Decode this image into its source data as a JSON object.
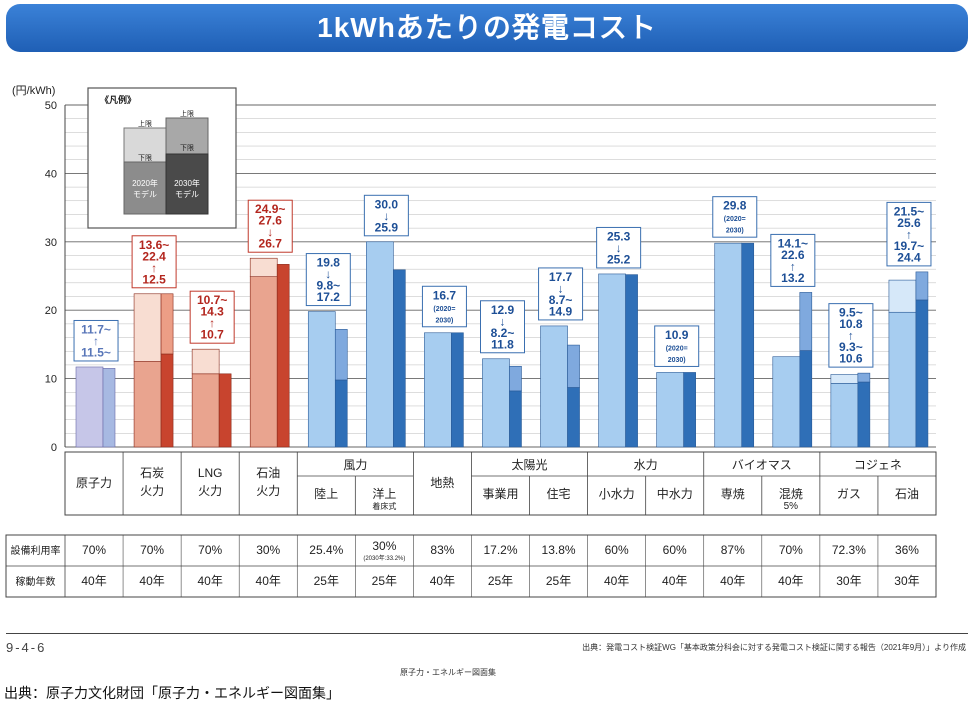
{
  "title": "1kWhあたりの発電コスト",
  "footer": {
    "figure_no": "9-4-6",
    "source_note": "出典：発電コスト検証WG「基本政策分科会に対する発電コスト検証に関する報告（2021年9月）」より作成",
    "book": "原子力・エネルギー図面集",
    "credit": "出典：原子力文化財団「原子力・エネルギー図面集」"
  },
  "legend": {
    "title": "《凡例》",
    "upper": "上限",
    "lower": "下限",
    "model2020": [
      "2020年",
      "モデル"
    ],
    "model2030": [
      "2030年",
      "モデル"
    ]
  },
  "chart_data": {
    "type": "bar",
    "title": "1kWhあたりの発電コスト",
    "ylabel": "(円/kWh)",
    "ylim": [
      0,
      50
    ],
    "yticks": [
      0,
      10,
      20,
      30,
      40,
      50
    ],
    "grid": true,
    "legend_position": "top-left",
    "group_labels": [
      "",
      "",
      "",
      "",
      "風力",
      "",
      "太陽光",
      "水力",
      "バイオマス",
      "コジェネ"
    ],
    "categories": [
      {
        "name": "原子力",
        "sub": "",
        "lower2020": 11.7,
        "upper2020": null,
        "lower2030": 11.5,
        "upper2030": null,
        "label": [
          "11.7~",
          "↑",
          "11.5~"
        ],
        "color": "purple",
        "group": ""
      },
      {
        "name": "石炭\n火力",
        "sub": "",
        "lower2020": 12.5,
        "upper2020": 22.4,
        "lower2030": 13.6,
        "upper2030": 22.4,
        "label": [
          "13.6~",
          "22.4",
          "↑",
          "12.5"
        ],
        "color": "red",
        "group": ""
      },
      {
        "name": "LNG\n火力",
        "sub": "",
        "lower2020": 10.7,
        "upper2020": 14.3,
        "lower2030": 10.7,
        "upper2030": null,
        "label": [
          "10.7~",
          "14.3",
          "↑",
          "10.7"
        ],
        "color": "red",
        "group": ""
      },
      {
        "name": "石油\n火力",
        "sub": "",
        "lower2020": 24.9,
        "upper2020": 27.6,
        "lower2030": 26.7,
        "upper2030": null,
        "label": [
          "24.9~",
          "27.6",
          "↓",
          "26.7"
        ],
        "color": "red",
        "group": ""
      },
      {
        "name": "陸上",
        "sub": "",
        "lower2020": 19.8,
        "upper2020": null,
        "lower2030": 9.8,
        "upper2030": 17.2,
        "label": [
          "19.8",
          "↓",
          "9.8~",
          "17.2"
        ],
        "color": "blue",
        "group": "風力"
      },
      {
        "name": "洋上",
        "sub": "着床式",
        "lower2020": 30.0,
        "upper2020": null,
        "lower2030": 25.9,
        "upper2030": null,
        "label": [
          "30.0",
          "↓",
          "25.9"
        ],
        "color": "blue",
        "group": "風力"
      },
      {
        "name": "地熱",
        "sub": "",
        "lower2020": 16.7,
        "upper2020": null,
        "lower2030": 16.7,
        "upper2030": null,
        "label": [
          "16.7",
          "(2020=",
          "2030)"
        ],
        "color": "blue",
        "group": ""
      },
      {
        "name": "事業用",
        "sub": "",
        "lower2020": 12.9,
        "upper2020": null,
        "lower2030": 8.2,
        "upper2030": 11.8,
        "label": [
          "12.9",
          "↓",
          "8.2~",
          "11.8"
        ],
        "color": "blue",
        "group": "太陽光"
      },
      {
        "name": "住宅",
        "sub": "",
        "lower2020": 17.7,
        "upper2020": null,
        "lower2030": 8.7,
        "upper2030": 14.9,
        "label": [
          "17.7",
          "↓",
          "8.7~",
          "14.9"
        ],
        "color": "blue",
        "group": "太陽光"
      },
      {
        "name": "小水力",
        "sub": "",
        "lower2020": 25.3,
        "upper2020": null,
        "lower2030": 25.2,
        "upper2030": null,
        "label": [
          "25.3",
          "↓",
          "25.2"
        ],
        "color": "blue",
        "group": "水力"
      },
      {
        "name": "中水力",
        "sub": "",
        "lower2020": 10.9,
        "upper2020": null,
        "lower2030": 10.9,
        "upper2030": null,
        "label": [
          "10.9",
          "(2020=",
          "2030)"
        ],
        "color": "blue",
        "group": "水力"
      },
      {
        "name": "専焼",
        "sub": "",
        "lower2020": 29.8,
        "upper2020": null,
        "lower2030": 29.8,
        "upper2030": null,
        "label": [
          "29.8",
          "(2020=",
          "2030)"
        ],
        "color": "blue",
        "group": "バイオマス"
      },
      {
        "name": "混焼",
        "sub": "5%",
        "lower2020": 13.2,
        "upper2020": null,
        "lower2030": 14.1,
        "upper2030": 22.6,
        "label": [
          "14.1~",
          "22.6",
          "↑",
          "13.2"
        ],
        "color": "blue",
        "group": "バイオマス"
      },
      {
        "name": "ガス",
        "sub": "",
        "lower2020": 9.3,
        "upper2020": 10.6,
        "lower2030": 9.5,
        "upper2030": 10.8,
        "label": [
          "9.5~",
          "10.8",
          "↑",
          "9.3~",
          "10.6"
        ],
        "color": "blue",
        "group": "コジェネ"
      },
      {
        "name": "石油",
        "sub": "",
        "lower2020": 19.7,
        "upper2020": 24.4,
        "lower2030": 21.5,
        "upper2030": 25.6,
        "label": [
          "21.5~",
          "25.6",
          "↑",
          "19.7~",
          "24.4"
        ],
        "color": "blue",
        "group": "コジェネ"
      }
    ]
  },
  "table": {
    "rows": [
      {
        "header": "設備利用率",
        "values": [
          "70%",
          "70%",
          "70%",
          "30%",
          "25.4%",
          "30%",
          "83%",
          "17.2%",
          "13.8%",
          "60%",
          "60%",
          "87%",
          "70%",
          "72.3%",
          "36%"
        ],
        "notes": [
          "",
          "",
          "",
          "",
          "",
          "(2030年:33.2%)",
          "",
          "",
          "",
          "",
          "",
          "",
          "",
          "",
          ""
        ]
      },
      {
        "header": "稼動年数",
        "values": [
          "40年",
          "40年",
          "40年",
          "40年",
          "25年",
          "25年",
          "40年",
          "25年",
          "25年",
          "40年",
          "40年",
          "40年",
          "40年",
          "30年",
          "30年"
        ],
        "notes": []
      }
    ]
  }
}
